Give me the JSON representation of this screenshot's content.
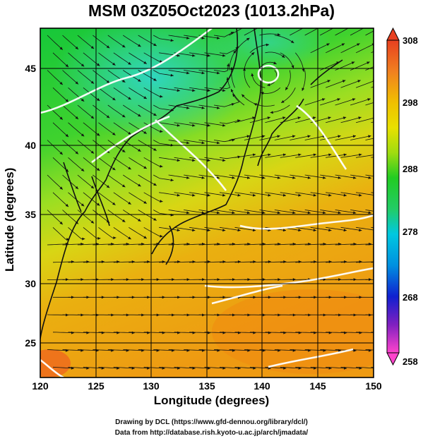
{
  "title": "MSM 03Z05Oct2023 (1013.2hPa)",
  "ylabel": "Latitude  (degrees)",
  "xlabel": "Longitude (degrees)",
  "footer_line1": "Drawing by DCL (https://www.gfd-dennou.org/library/dcl/)",
  "footer_line2": "Data from http://database.rish.kyoto-u.ac.jp/arch/jmadata/",
  "x_ticks": [
    "120",
    "125",
    "130",
    "135",
    "140",
    "145",
    "150"
  ],
  "y_ticks": [
    "25",
    "30",
    "35",
    "40",
    "45"
  ],
  "colorbar_ticks": [
    "308",
    "298",
    "288",
    "278",
    "268",
    "258"
  ],
  "chart_data": {
    "type": "heatmap",
    "xlim": [
      120,
      150
    ],
    "ylim": [
      23,
      48
    ],
    "colorbar_range": [
      258,
      308
    ],
    "colorbar_ticks": [
      308,
      298,
      288,
      278,
      268,
      258
    ],
    "colors": {
      "cold_min": "#ff44cc",
      "mid_low": "#00c8e0",
      "mid": "#22cc22",
      "mid_high": "#e8e000",
      "warm": "#f0a000",
      "warm_max": "#e84020"
    }
  }
}
